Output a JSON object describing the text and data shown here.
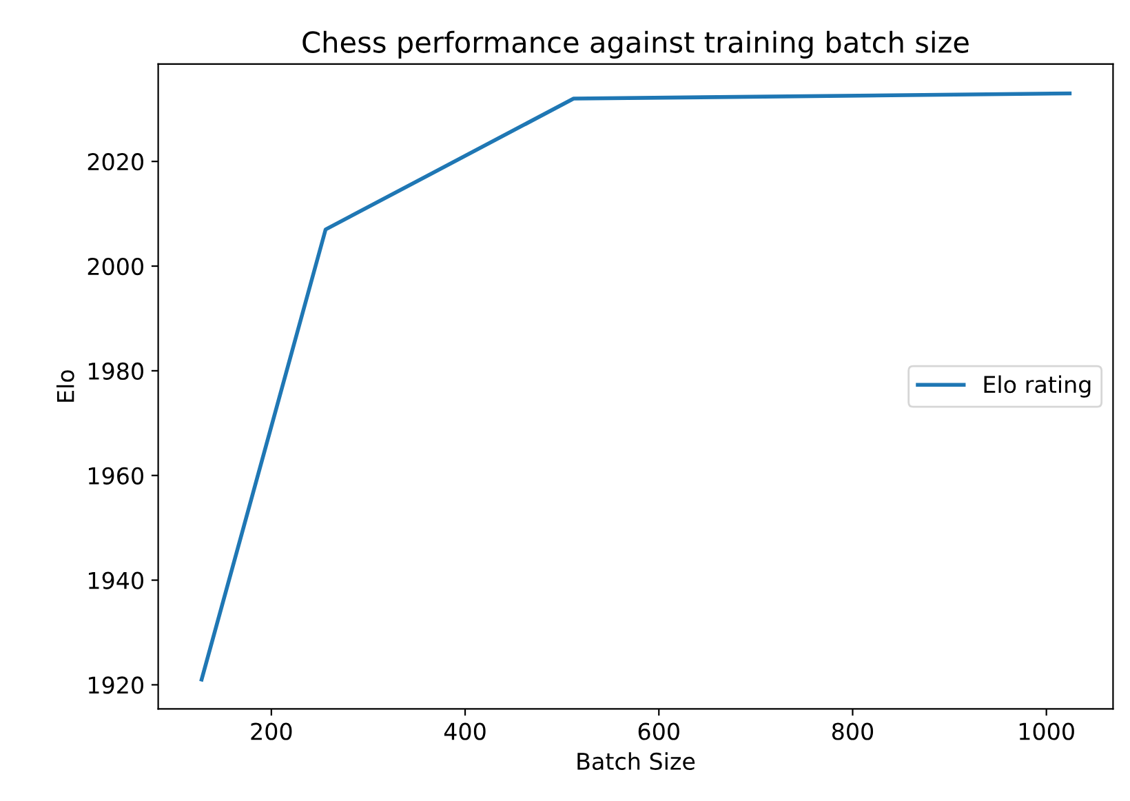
{
  "chart_data": {
    "type": "line",
    "title": "Chess performance against training batch size",
    "xlabel": "Batch Size",
    "ylabel": "Elo",
    "x": [
      128,
      256,
      512,
      1024
    ],
    "series": [
      {
        "name": "Elo rating",
        "color": "#1f77b4",
        "values": [
          1921,
          2007,
          2032,
          2033
        ]
      }
    ],
    "xlim": [
      83.2,
      1068.8
    ],
    "xticks": [
      200,
      400,
      600,
      800,
      1000
    ],
    "ylim": [
      1915.4,
      2038.6
    ],
    "yticks": [
      1920,
      1940,
      1960,
      1980,
      2000,
      2020
    ],
    "legend": "center right",
    "grid": false
  }
}
